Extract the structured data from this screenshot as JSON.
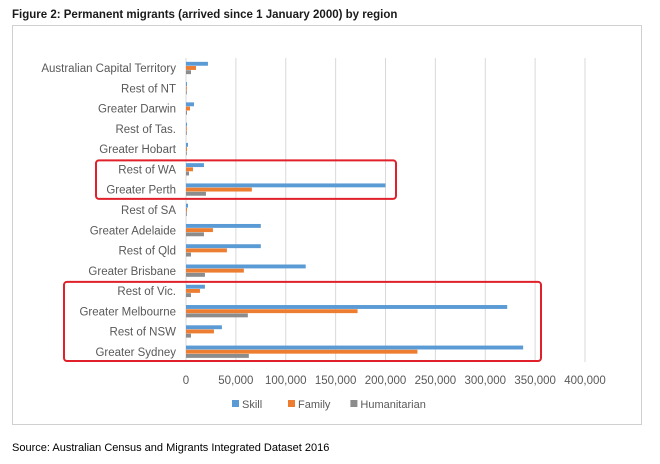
{
  "figure": {
    "title": "Figure 2: Permanent migrants (arrived since 1 January 2000) by region",
    "source": "Source: Australian Census and Migrants Integrated Dataset 2016"
  },
  "chart_data": {
    "type": "bar",
    "orientation": "horizontal",
    "categories": [
      "Australian Capital Territory",
      "Rest of NT",
      "Greater Darwin",
      "Rest of Tas.",
      "Greater Hobart",
      "Rest of WA",
      "Greater Perth",
      "Rest of SA",
      "Greater Adelaide",
      "Rest of Qld",
      "Greater Brisbane",
      "Rest of Vic.",
      "Greater Melbourne",
      "Rest of NSW",
      "Greater Sydney"
    ],
    "series": [
      {
        "name": "Skill",
        "color": "#5b9bd5",
        "values": [
          22000,
          1000,
          8000,
          1000,
          2000,
          18000,
          200000,
          2000,
          75000,
          75000,
          120000,
          19000,
          322000,
          36000,
          338000
        ]
      },
      {
        "name": "Family",
        "color": "#ed7d31",
        "values": [
          10000,
          500,
          4000,
          500,
          1000,
          7000,
          66000,
          1000,
          27000,
          41000,
          58000,
          14000,
          172000,
          28000,
          232000
        ]
      },
      {
        "name": "Humanitarian",
        "color": "#8c8c8c",
        "values": [
          5000,
          300,
          1000,
          300,
          500,
          3000,
          20000,
          500,
          18000,
          5000,
          19000,
          5000,
          62000,
          5000,
          63000
        ]
      }
    ],
    "xlim": [
      0,
      400000
    ],
    "ticks": [
      0,
      50000,
      100000,
      150000,
      200000,
      250000,
      300000,
      350000,
      400000
    ],
    "tick_labels": [
      "0",
      "50,000",
      "100,000",
      "150,000",
      "200,000",
      "250,000",
      "300,000",
      "350,000",
      "400,000"
    ],
    "grid": true,
    "legend": "bottom",
    "highlight_color": "#e0202a",
    "highlight_groups": [
      [
        "Rest of WA",
        "Greater Perth"
      ],
      [
        "Rest of Vic.",
        "Greater Melbourne",
        "Rest of NSW",
        "Greater Sydney"
      ]
    ]
  }
}
